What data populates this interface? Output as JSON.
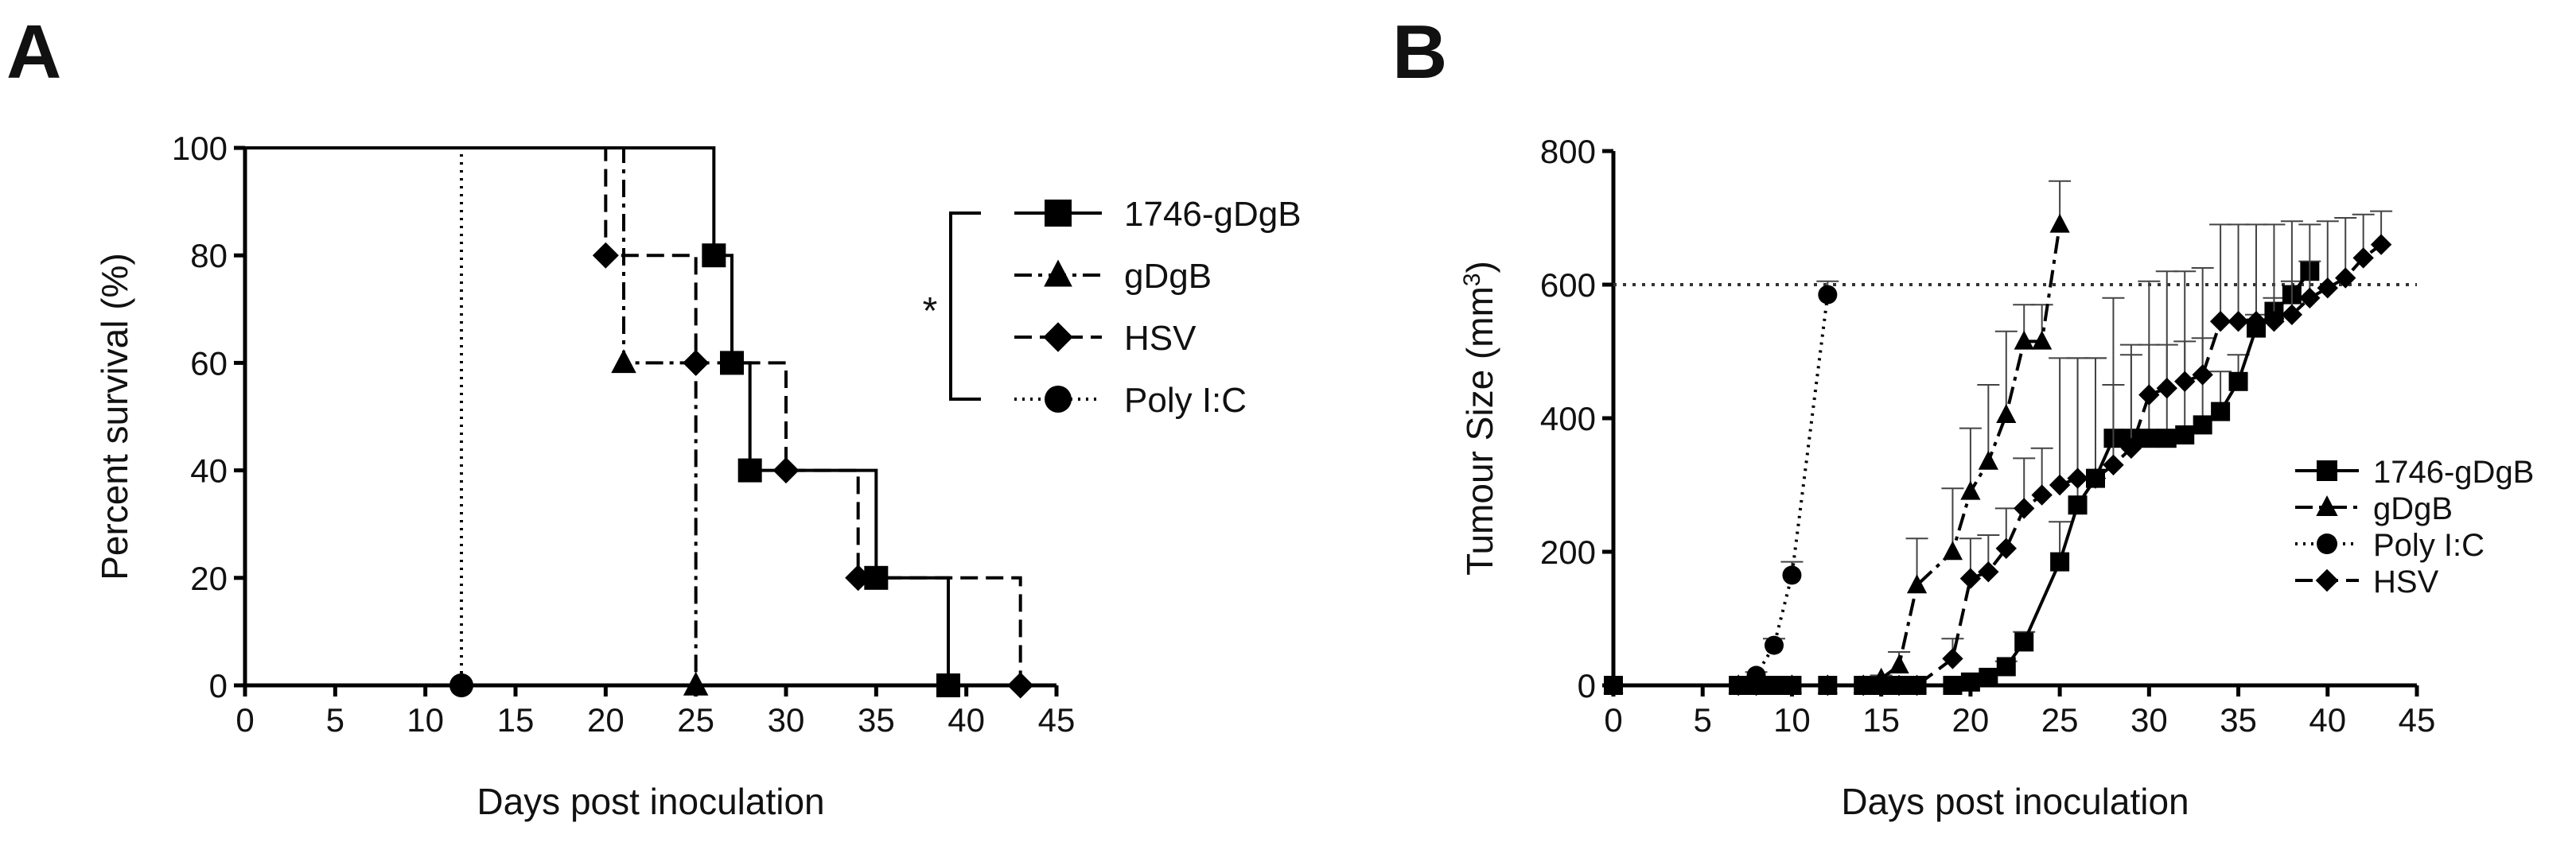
{
  "chart_data": [
    {
      "panel": "A",
      "type": "line",
      "xlabel": "Days post inoculation",
      "ylabel": "Percent survival (%)",
      "xlim": [
        0,
        45
      ],
      "ylim": [
        0,
        100
      ],
      "xticks": [
        0,
        5,
        10,
        15,
        20,
        25,
        30,
        35,
        40,
        45
      ],
      "yticks": [
        0,
        20,
        40,
        60,
        80,
        100
      ],
      "legend_position": "right",
      "significance": "*",
      "series": [
        {
          "name": "1746-gDgB",
          "marker": "square",
          "line_style": "solid",
          "steps": [
            [
              0,
              100
            ],
            [
              26,
              80
            ],
            [
              27,
              60
            ],
            [
              28,
              40
            ],
            [
              35,
              20
            ],
            [
              39,
              0
            ]
          ],
          "points": [
            [
              26,
              80
            ],
            [
              27,
              60
            ],
            [
              28,
              40
            ],
            [
              35,
              20
            ],
            [
              39,
              0
            ]
          ]
        },
        {
          "name": "gDgB",
          "marker": "triangle",
          "line_style": "dashdot",
          "steps": [
            [
              0,
              100
            ],
            [
              21,
              60
            ],
            [
              25,
              0
            ]
          ],
          "points": [
            [
              21,
              60
            ],
            [
              25,
              0
            ]
          ]
        },
        {
          "name": "HSV",
          "marker": "diamond",
          "line_style": "dashed",
          "steps": [
            [
              0,
              100
            ],
            [
              20,
              80
            ],
            [
              25,
              60
            ],
            [
              30,
              40
            ],
            [
              34,
              20
            ],
            [
              43,
              0
            ]
          ],
          "points": [
            [
              20,
              80
            ],
            [
              25,
              60
            ],
            [
              30,
              40
            ],
            [
              34,
              20
            ],
            [
              43,
              0
            ]
          ]
        },
        {
          "name": "Poly I:C",
          "marker": "circle",
          "line_style": "dotted",
          "steps": [
            [
              0,
              100
            ],
            [
              12,
              0
            ]
          ],
          "points": [
            [
              12,
              0
            ]
          ]
        }
      ]
    },
    {
      "panel": "B",
      "type": "line",
      "xlabel": "Days post inoculation",
      "ylabel": "Tumour Size (mm",
      "ylabel_sup": "3",
      "ylabel_end": ")",
      "xlim": [
        0,
        45
      ],
      "ylim": [
        0,
        800
      ],
      "xticks": [
        0,
        5,
        10,
        15,
        20,
        25,
        30,
        35,
        40,
        45
      ],
      "yticks": [
        0,
        200,
        400,
        600,
        800
      ],
      "threshold": 600,
      "legend_position": "bottom-right",
      "series": [
        {
          "name": "1746-gDgB",
          "marker": "square",
          "line_style": "solid",
          "x": [
            0,
            7,
            8,
            9,
            10,
            12,
            14,
            15,
            16,
            17,
            19,
            20,
            21,
            22,
            23,
            25,
            26,
            27,
            28,
            29,
            30,
            31,
            32,
            33,
            34,
            35,
            36,
            37,
            38,
            39
          ],
          "y": [
            0,
            0,
            0,
            0,
            0,
            0,
            0,
            0,
            0,
            0,
            0,
            5,
            12,
            28,
            65,
            185,
            270,
            310,
            370,
            370,
            370,
            370,
            375,
            390,
            410,
            455,
            535,
            560,
            585,
            620
          ],
          "err": [
            0,
            0,
            0,
            0,
            0,
            0,
            0,
            0,
            0,
            0,
            0,
            0,
            5,
            8,
            15,
            60,
            220,
            180,
            210,
            140,
            140,
            140,
            140,
            130,
            60,
            40,
            20,
            20,
            20,
            15
          ]
        },
        {
          "name": "gDgB",
          "marker": "triangle",
          "line_style": "dashdot",
          "x": [
            0,
            7,
            8,
            10,
            12,
            14,
            15,
            16,
            17,
            19,
            20,
            21,
            22,
            23,
            24,
            25
          ],
          "y": [
            0,
            0,
            0,
            0,
            0,
            0,
            10,
            30,
            150,
            200,
            290,
            335,
            405,
            515,
            515,
            690
          ],
          "err": [
            0,
            0,
            0,
            0,
            0,
            0,
            5,
            20,
            70,
            95,
            95,
            115,
            125,
            55,
            55,
            65
          ]
        },
        {
          "name": "Poly I:C",
          "marker": "circle",
          "line_style": "dotted",
          "x": [
            0,
            7,
            8,
            9,
            10,
            12
          ],
          "y": [
            0,
            0,
            15,
            60,
            165,
            585
          ],
          "err": [
            0,
            0,
            5,
            10,
            20,
            20
          ]
        },
        {
          "name": "HSV",
          "marker": "diamond",
          "line_style": "dashed",
          "x": [
            0,
            7,
            8,
            10,
            12,
            14,
            15,
            16,
            17,
            19,
            20,
            21,
            22,
            23,
            24,
            25,
            26,
            27,
            28,
            29,
            30,
            31,
            32,
            33,
            34,
            35,
            36,
            37,
            38,
            39,
            40,
            41,
            42,
            43
          ],
          "y": [
            0,
            0,
            0,
            0,
            0,
            0,
            0,
            0,
            0,
            40,
            160,
            170,
            205,
            265,
            285,
            300,
            310,
            310,
            330,
            355,
            435,
            445,
            455,
            465,
            545,
            545,
            545,
            545,
            555,
            580,
            595,
            610,
            640,
            660
          ],
          "err": [
            0,
            0,
            0,
            0,
            0,
            0,
            0,
            0,
            0,
            30,
            60,
            55,
            60,
            75,
            70,
            190,
            180,
            180,
            120,
            140,
            170,
            175,
            165,
            160,
            145,
            145,
            145,
            145,
            140,
            110,
            100,
            90,
            65,
            50
          ]
        }
      ]
    }
  ],
  "panel_labels": {
    "a": "A",
    "b": "B"
  }
}
